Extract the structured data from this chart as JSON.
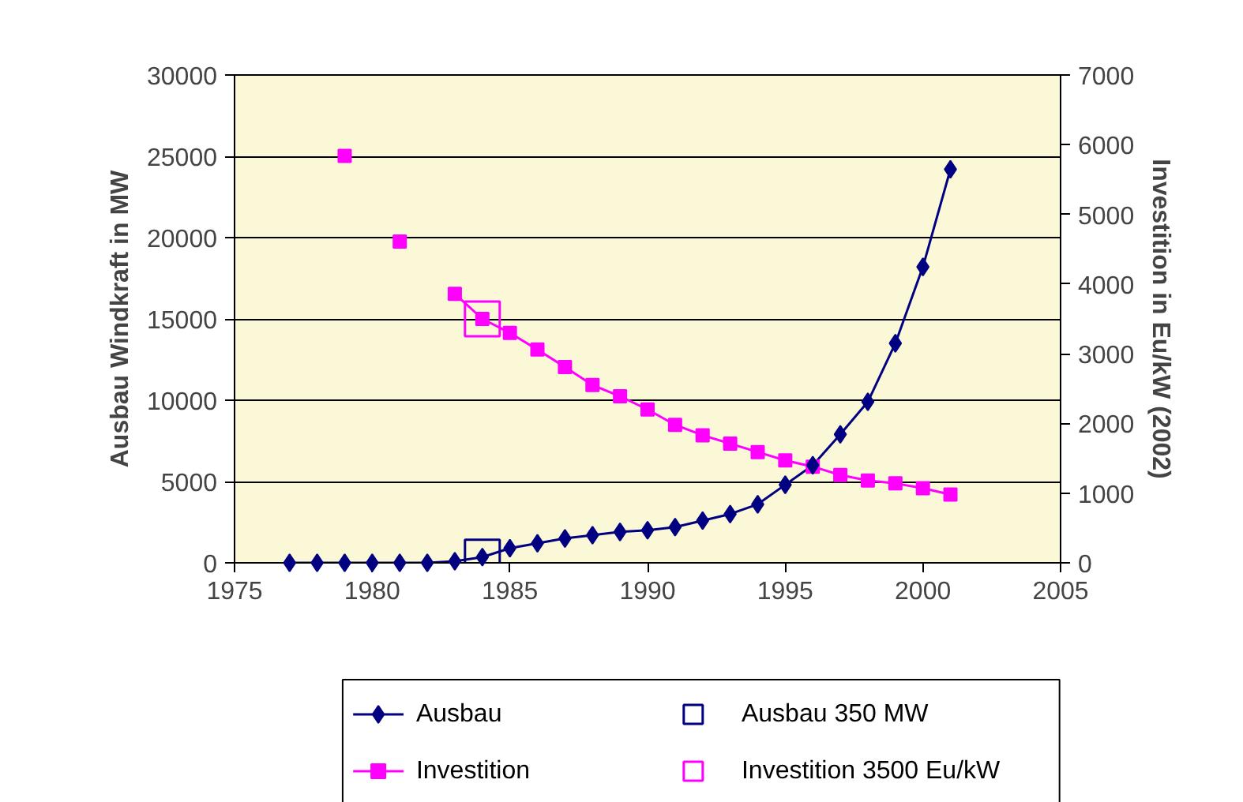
{
  "chart_data": {
    "type": "line",
    "xlabel": null,
    "ylabel": "Ausbau Windkraft in MW",
    "y2label": "Investition in Eu/kW (2002)",
    "x": [
      1977,
      1978,
      1979,
      1980,
      1981,
      1982,
      1983,
      1984,
      1985,
      1986,
      1987,
      1988,
      1989,
      1990,
      1991,
      1992,
      1993,
      1994,
      1995,
      1996,
      1997,
      1998,
      1999,
      2000,
      2001
    ],
    "series": [
      {
        "name": "Ausbau",
        "color": "#000080",
        "marker": "diamond",
        "values": [
          0,
          0,
          0,
          0,
          0,
          0,
          100,
          350,
          900,
          1200,
          1500,
          1700,
          1900,
          2000,
          2200,
          2600,
          3000,
          3600,
          4800,
          6000,
          7900,
          9900,
          13500,
          18200,
          24200
        ]
      },
      {
        "name": "Investition",
        "color": "#ff00ff",
        "marker": "square",
        "axis": "y2",
        "values": [
          null,
          null,
          5840,
          null,
          4610,
          null,
          3860,
          3500,
          3300,
          3060,
          2810,
          2550,
          2390,
          2200,
          1980,
          1830,
          1710,
          1590,
          1470,
          1380,
          1260,
          1180,
          1140,
          1070,
          980
        ]
      },
      {
        "name": "Ausbau 350 MW",
        "type": "scatter",
        "color": "#000080",
        "marker": "square",
        "x": [
          1984
        ],
        "values": [
          350
        ]
      },
      {
        "name": "Investition 3500 Eu/kW",
        "type": "scatter",
        "color": "#ff00ff",
        "marker": "square",
        "axis": "y2",
        "x": [
          1984
        ],
        "values": [
          3500
        ]
      }
    ],
    "xlim": [
      1975,
      2005
    ],
    "xticks": [
      1975,
      1980,
      1985,
      1990,
      1995,
      2000,
      2005
    ],
    "ylim": [
      0,
      30000
    ],
    "yticks": [
      0,
      5000,
      10000,
      15000,
      20000,
      25000,
      30000
    ],
    "y2lim": [
      0,
      7000
    ],
    "y2ticks": [
      0,
      1000,
      2000,
      3000,
      4000,
      5000,
      6000,
      7000
    ],
    "grid": "y",
    "legend": "bottom"
  }
}
